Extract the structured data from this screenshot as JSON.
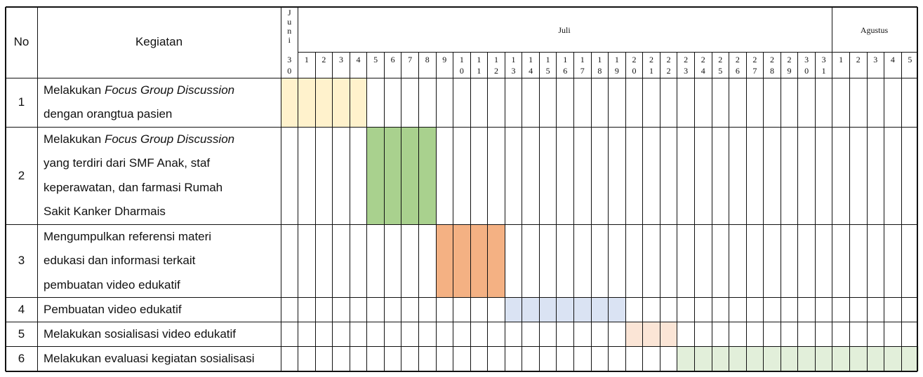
{
  "header": {
    "no": "No",
    "kegiatan": "Kegiatan",
    "months": [
      "Juni",
      "Juli",
      "Agustus"
    ]
  },
  "days": [
    "30",
    "1",
    "2",
    "3",
    "4",
    "5",
    "6",
    "7",
    "8",
    "9",
    "10",
    "11",
    "12",
    "13",
    "14",
    "15",
    "16",
    "17",
    "18",
    "19",
    "20",
    "21",
    "22",
    "23",
    "24",
    "25",
    "26",
    "27",
    "28",
    "29",
    "30",
    "31",
    "1",
    "2",
    "3",
    "4",
    "5"
  ],
  "tasks": [
    {
      "no": "1",
      "lines": [
        {
          "text": "Melakukan ",
          "italic": "Focus Group Discussion"
        },
        {
          "text": "dengan orangtua pasien"
        }
      ],
      "start": 0,
      "end": 4,
      "color": "#fff2cc"
    },
    {
      "no": "2",
      "lines": [
        {
          "text": "Melakukan ",
          "italic": "Focus Group Discussion"
        },
        {
          "text": "yang terdiri dari SMF Anak, staf"
        },
        {
          "text": "keperawatan, dan farmasi Rumah"
        },
        {
          "text": "Sakit Kanker Dharmais"
        }
      ],
      "start": 5,
      "end": 8,
      "color": "#a9d18e"
    },
    {
      "no": "3",
      "lines": [
        {
          "text": "Mengumpulkan referensi materi"
        },
        {
          "text": "edukasi dan informasi terkait"
        },
        {
          "text": "pembuatan video edukatif"
        }
      ],
      "start": 9,
      "end": 12,
      "color": "#f4b183"
    },
    {
      "no": "4",
      "lines": [
        {
          "text": "Pembuatan video edukatif"
        }
      ],
      "start": 13,
      "end": 19,
      "color": "#dae3f3"
    },
    {
      "no": "5",
      "lines": [
        {
          "text": "Melakukan sosialisasi video edukatif"
        }
      ],
      "start": 20,
      "end": 22,
      "color": "#fbe5d6"
    },
    {
      "no": "6",
      "lines": [
        {
          "text": "Melakukan evaluasi kegiatan sosialisasi"
        }
      ],
      "start": 23,
      "end": 36,
      "color": "#e2efda"
    }
  ]
}
